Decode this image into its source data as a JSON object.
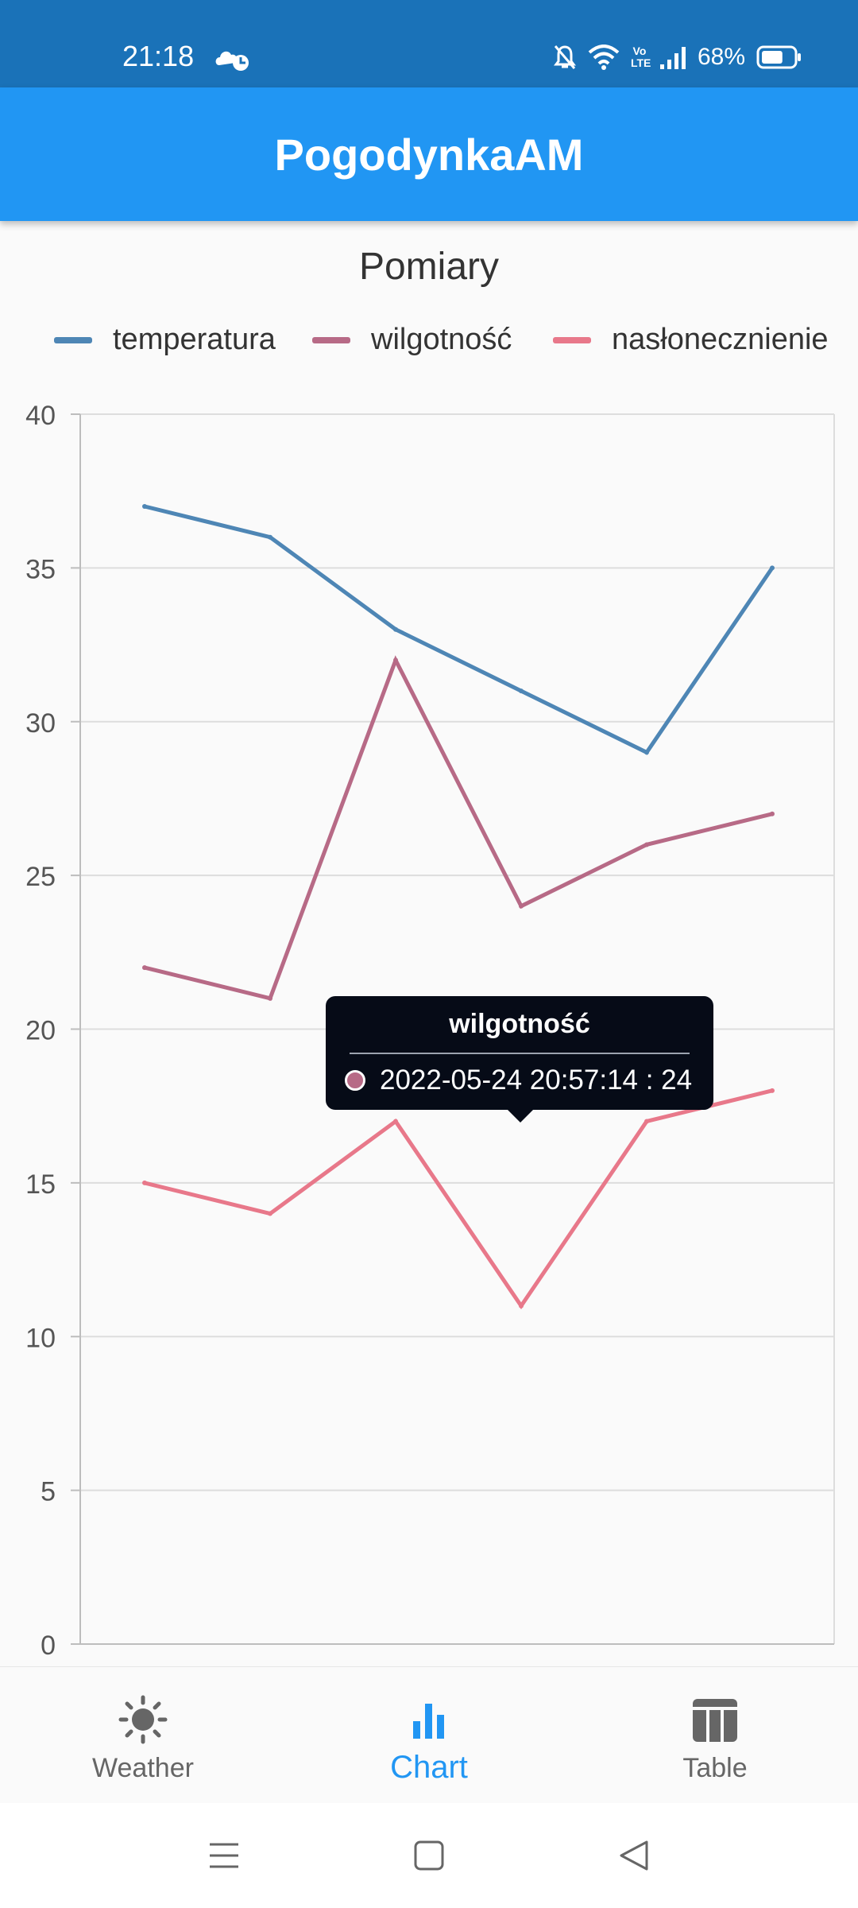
{
  "status": {
    "time": "21:18",
    "battery": "68%",
    "lte": "Vo LTE"
  },
  "app": {
    "title": "PogodynkaAM"
  },
  "colors": {
    "appbar": "#2196f3",
    "statusbar": "#1a72b8",
    "temperatura": "#4e86b5",
    "wilgotnosc": "#b76a86",
    "naslonecznienie": "#e8788a"
  },
  "chart_data": {
    "type": "line",
    "title": "Pomiary",
    "x": [
      1,
      2,
      3,
      4,
      5,
      6
    ],
    "ylim": [
      0,
      40
    ],
    "yticks": [
      0,
      5,
      10,
      15,
      20,
      25,
      30,
      35,
      40
    ],
    "grid": true,
    "legend_position": "top",
    "series": [
      {
        "name": "temperatura",
        "color": "#4e86b5",
        "values": [
          37,
          36,
          33,
          31,
          29,
          35
        ]
      },
      {
        "name": "wilgotność",
        "color": "#b76a86",
        "values": [
          22,
          21,
          32,
          24,
          26,
          27
        ]
      },
      {
        "name": "nasłonecznienie",
        "color": "#e8788a",
        "values": [
          15,
          14,
          17,
          11,
          17,
          18
        ]
      }
    ]
  },
  "tooltip": {
    "title": "wilgotność",
    "label": "2022-05-24  20:57:14 : 24",
    "series_index": 1,
    "point_index": 3
  },
  "nav": {
    "items": [
      {
        "label": "Weather",
        "icon": "sun-icon"
      },
      {
        "label": "Chart",
        "icon": "bar-chart-icon"
      },
      {
        "label": "Table",
        "icon": "table-icon"
      }
    ],
    "active": "Chart"
  }
}
